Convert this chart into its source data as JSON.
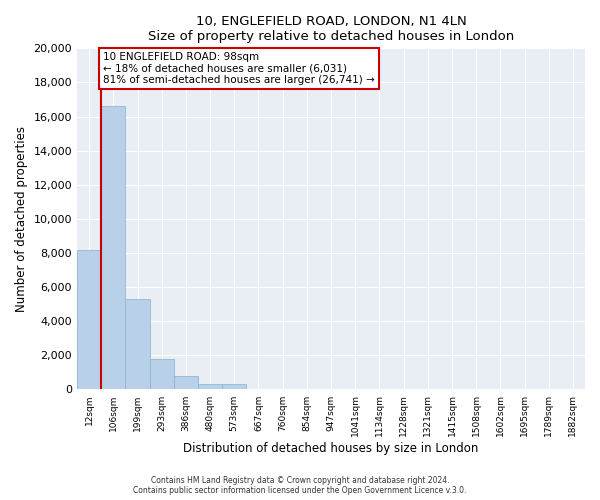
{
  "title": "10, ENGLEFIELD ROAD, LONDON, N1 4LN",
  "subtitle": "Size of property relative to detached houses in London",
  "xlabel": "Distribution of detached houses by size in London",
  "ylabel": "Number of detached properties",
  "bar_labels": [
    "12sqm",
    "106sqm",
    "199sqm",
    "293sqm",
    "386sqm",
    "480sqm",
    "573sqm",
    "667sqm",
    "760sqm",
    "854sqm",
    "947sqm",
    "1041sqm",
    "1134sqm",
    "1228sqm",
    "1321sqm",
    "1415sqm",
    "1508sqm",
    "1602sqm",
    "1695sqm",
    "1789sqm",
    "1882sqm"
  ],
  "bar_values": [
    8200,
    16600,
    5300,
    1800,
    800,
    300,
    300,
    0,
    0,
    0,
    0,
    0,
    0,
    0,
    0,
    0,
    0,
    0,
    0,
    0,
    0
  ],
  "bar_color": "#b8d0e8",
  "bar_edge_color": "#8ab0d0",
  "marker_color": "#cc0000",
  "ylim": [
    0,
    20000
  ],
  "yticks": [
    0,
    2000,
    4000,
    6000,
    8000,
    10000,
    12000,
    14000,
    16000,
    18000,
    20000
  ],
  "annotation_title": "10 ENGLEFIELD ROAD: 98sqm",
  "annotation_line1": "← 18% of detached houses are smaller (6,031)",
  "annotation_line2": "81% of semi-detached houses are larger (26,741) →",
  "footer1": "Contains HM Land Registry data © Crown copyright and database right 2024.",
  "footer2": "Contains public sector information licensed under the Open Government Licence v.3.0.",
  "bg_color": "#e8eef4",
  "grid_color": "#ffffff"
}
